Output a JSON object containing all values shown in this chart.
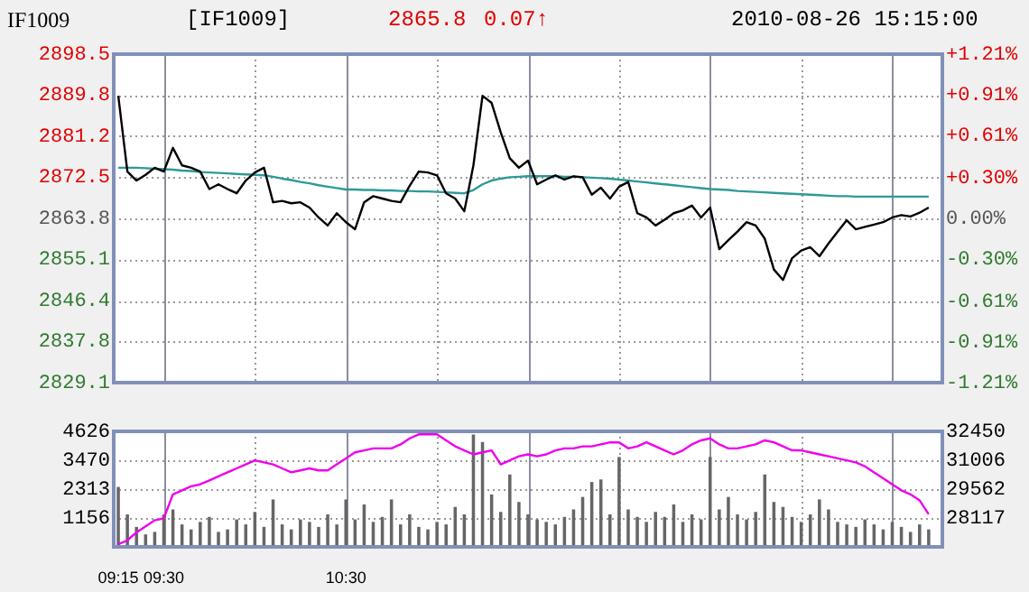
{
  "chart_data": [
    {
      "type": "line",
      "annotations": [
        "IF1009",
        "[IF1009]",
        "2865.8",
        "0.07↑",
        "2010-08-26 15:15:00"
      ],
      "series": [
        {
          "color": "#000000",
          "values": [
            2889.7,
            2873.7,
            2871.8,
            2873.0,
            2874.5,
            2873.7,
            2878.7,
            2875.0,
            2874.5,
            2873.7,
            2870.0,
            2871.0,
            2870.0,
            2869.1,
            2871.8,
            2873.5,
            2874.5,
            2867.2,
            2867.5,
            2867.0,
            2867.2,
            2866.1,
            2864.0,
            2862.3,
            2864.9,
            2863.0,
            2861.5,
            2867.2,
            2868.5,
            2868.0,
            2867.5,
            2867.2,
            2870.7,
            2873.7,
            2873.5,
            2872.9,
            2869.1,
            2868.0,
            2865.3,
            2875.0,
            2889.7,
            2888.2,
            2882.0,
            2876.5,
            2874.5,
            2876.0,
            2871.0,
            2872.0,
            2872.9,
            2872.0,
            2872.7,
            2872.5,
            2868.8,
            2870.3,
            2868.0,
            2870.5,
            2871.5,
            2864.9,
            2864.0,
            2862.3,
            2863.5,
            2864.9,
            2865.5,
            2866.5,
            2864.0,
            2866.1,
            2857.3,
            2859.2,
            2861.0,
            2863.0,
            2862.3,
            2859.5,
            2853.0,
            2850.8,
            2855.4,
            2857.0,
            2857.7,
            2855.8,
            2858.5,
            2861.0,
            2863.4,
            2861.5,
            2862.0,
            2862.5,
            2863.0,
            2864.0,
            2864.5,
            2864.2,
            2865.0,
            2866.1,
            null
          ]
        },
        {
          "color": "#2e9a98",
          "values": [
            2874.5,
            2874.5,
            2874.5,
            2874.4,
            2874.3,
            2874.2,
            2874.1,
            2873.9,
            2873.8,
            2873.6,
            2873.5,
            2873.4,
            2873.3,
            2873.2,
            2873.1,
            2873.0,
            2872.9,
            2872.6,
            2872.2,
            2871.9,
            2871.5,
            2871.2,
            2870.8,
            2870.5,
            2870.2,
            2869.9,
            2869.9,
            2869.8,
            2869.8,
            2869.7,
            2869.7,
            2869.6,
            2869.6,
            2869.5,
            2869.5,
            2869.4,
            2869.3,
            2869.2,
            2869.1,
            2869.8,
            2871.0,
            2871.8,
            2872.2,
            2872.5,
            2872.6,
            2872.7,
            2872.7,
            2872.7,
            2872.7,
            2872.6,
            2872.6,
            2872.5,
            2872.4,
            2872.3,
            2872.2,
            2872.0,
            2871.8,
            2871.6,
            2871.4,
            2871.2,
            2871.0,
            2870.8,
            2870.6,
            2870.4,
            2870.2,
            2870.0,
            2869.9,
            2869.8,
            2869.6,
            2869.5,
            2869.4,
            2869.3,
            2869.2,
            2869.1,
            2869.0,
            2868.9,
            2868.8,
            2868.7,
            2868.6,
            2868.5,
            2868.5,
            2868.4,
            2868.4,
            2868.4,
            2868.4,
            2868.4,
            2868.4,
            2868.4,
            2868.4,
            2868.4,
            null
          ]
        }
      ],
      "ylim": [
        2829.1,
        2898.5
      ],
      "yticks": [
        2829.1,
        2837.8,
        2846.4,
        2855.1,
        2863.8,
        2872.5,
        2881.2,
        2889.8,
        2898.5
      ],
      "y2lim": [
        -1.21,
        1.21
      ],
      "y2ticks": [
        {
          "value": -1.21,
          "label": "-1.21%"
        },
        {
          "value": -0.91,
          "label": "-0.91%"
        },
        {
          "value": -0.61,
          "label": "-0.61%"
        },
        {
          "value": -0.3,
          "label": "-0.30%"
        },
        {
          "value": 0,
          "label": "0.00%"
        },
        {
          "value": 0.3,
          "label": "+0.30%"
        },
        {
          "value": 0.61,
          "label": "+0.61%"
        },
        {
          "value": 0.91,
          "label": "+0.91%"
        },
        {
          "value": 1.21,
          "label": "+1.21%"
        }
      ],
      "tick_labels": "y",
      "grid": true,
      "legend": false
    },
    {
      "type": "bar",
      "categories": [
        "09:15",
        null,
        null,
        null,
        null,
        "09:30",
        null,
        null,
        null,
        null,
        null,
        null,
        null,
        null,
        null,
        null,
        null,
        null,
        null,
        null,
        null,
        null,
        null,
        null,
        null,
        "10:30",
        null,
        null,
        null,
        null,
        null,
        null,
        null,
        null,
        null,
        null,
        null,
        null,
        null,
        null,
        null,
        null,
        null,
        null,
        null,
        null,
        null,
        null,
        null,
        null,
        null,
        null,
        null,
        null,
        null,
        null,
        null,
        null,
        null,
        null,
        null,
        null,
        null,
        null,
        null,
        null,
        null,
        null,
        null,
        null,
        null,
        null,
        null,
        null,
        null,
        null,
        null,
        null,
        null,
        null,
        null,
        null,
        null,
        null,
        null,
        null,
        null,
        null,
        null,
        null,
        null
      ],
      "series": [
        {
          "color": "#666666",
          "values": [
            2400,
            1300,
            800,
            500,
            600,
            1300,
            1500,
            900,
            700,
            1000,
            1200,
            600,
            700,
            1100,
            900,
            1400,
            800,
            1900,
            900,
            700,
            1100,
            1000,
            800,
            1300,
            900,
            1900,
            1100,
            1700,
            1000,
            1200,
            1900,
            900,
            1300,
            800,
            700,
            1000,
            900,
            1600,
            1300,
            4500,
            4200,
            2100,
            1400,
            2900,
            1800,
            1300,
            1100,
            1000,
            900,
            1200,
            1500,
            2000,
            2600,
            2700,
            1300,
            3600,
            1500,
            1200,
            1000,
            1400,
            1200,
            1700,
            1000,
            1300,
            1100,
            3600,
            1500,
            2000,
            1300,
            1100,
            1400,
            2900,
            1800,
            1600,
            1200,
            1000,
            1300,
            1900,
            1500,
            1000,
            900,
            800,
            1100,
            900,
            700,
            1000,
            800,
            600,
            900,
            700,
            null
          ]
        },
        {
          "type": "line",
          "axis": "y2",
          "color": "#ee00ee",
          "values": [
            26800,
            27000,
            27400,
            27700,
            28000,
            28100,
            29300,
            29500,
            29700,
            29800,
            30000,
            30200,
            30400,
            30600,
            30800,
            31000,
            30900,
            30800,
            30600,
            30400,
            30500,
            30600,
            30500,
            30500,
            30800,
            31100,
            31400,
            31500,
            31600,
            31600,
            31600,
            31800,
            32100,
            32300,
            32300,
            32300,
            32000,
            31700,
            31500,
            31300,
            31400,
            31500,
            30800,
            31000,
            31200,
            31300,
            31200,
            31300,
            31500,
            31600,
            31600,
            31700,
            31700,
            31800,
            31900,
            31900,
            31600,
            31700,
            31900,
            31700,
            31500,
            31300,
            31500,
            31800,
            32000,
            32100,
            31800,
            31600,
            31600,
            31700,
            31800,
            32000,
            31900,
            31700,
            31500,
            31500,
            31400,
            31300,
            31200,
            31100,
            31000,
            30900,
            30700,
            30400,
            30100,
            29800,
            29500,
            29300,
            29000,
            28300,
            null
          ]
        }
      ],
      "ylim": [
        0,
        4626
      ],
      "yticks": [
        1156,
        2313,
        3470,
        4626
      ],
      "y2lim": [
        26673,
        32450
      ],
      "y2ticks": [
        28117,
        29562,
        31006,
        32450
      ],
      "grid": true,
      "legend": false
    }
  ]
}
